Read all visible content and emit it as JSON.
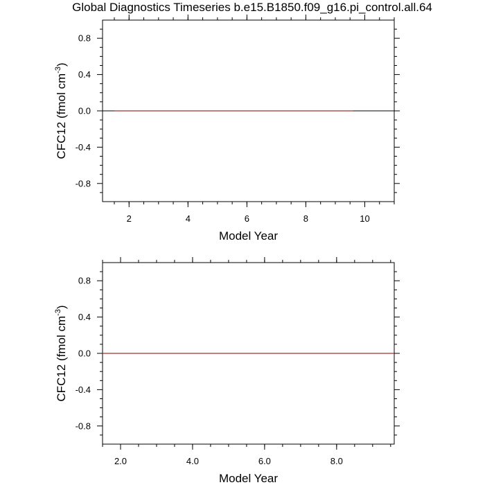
{
  "title": "Global Diagnostics Timeseries b.e15.B1850.f09_g16.pi_control.all.64",
  "colors": {
    "zero_line": "#000000",
    "series": "#a0302a",
    "frame": "#000000"
  },
  "chart_data": [
    {
      "type": "line",
      "xlabel": "Model Year",
      "ylabel": "CFC12 (fmol cm",
      "ylabel_superscript": "-3",
      "ylabel_close": ")",
      "xlim": [
        1.1,
        11.0
      ],
      "ylim": [
        -1.0,
        1.0
      ],
      "x_ticks": [
        2,
        4,
        6,
        8,
        10
      ],
      "x_tick_labels": [
        "2",
        "4",
        "6",
        "8",
        "10"
      ],
      "y_ticks": [
        0.8,
        0.4,
        0.0,
        -0.4,
        -0.8
      ],
      "y_tick_labels": [
        "0.8",
        "0.4",
        "0.0",
        "-0.4",
        "-0.8"
      ],
      "reference_line": 0.0,
      "series": [
        {
          "x": [
            1.5,
            9.6
          ],
          "y": [
            0.0,
            0.0
          ]
        }
      ]
    },
    {
      "type": "line",
      "xlabel": "Model Year",
      "ylabel": "CFC12 (fmol cm",
      "ylabel_superscript": "-3",
      "ylabel_close": ")",
      "xlim": [
        1.5,
        9.6
      ],
      "ylim": [
        -1.0,
        1.0
      ],
      "x_ticks": [
        2.0,
        4.0,
        6.0,
        8.0
      ],
      "x_tick_labels": [
        "2.0",
        "4.0",
        "6.0",
        "8.0"
      ],
      "y_ticks": [
        0.8,
        0.4,
        0.0,
        -0.4,
        -0.8
      ],
      "y_tick_labels": [
        "0.8",
        "0.4",
        "0.0",
        "-0.4",
        "-0.8"
      ],
      "reference_line": 0.0,
      "series": [
        {
          "x": [
            1.5,
            9.6
          ],
          "y": [
            0.0,
            0.0
          ]
        }
      ]
    }
  ]
}
